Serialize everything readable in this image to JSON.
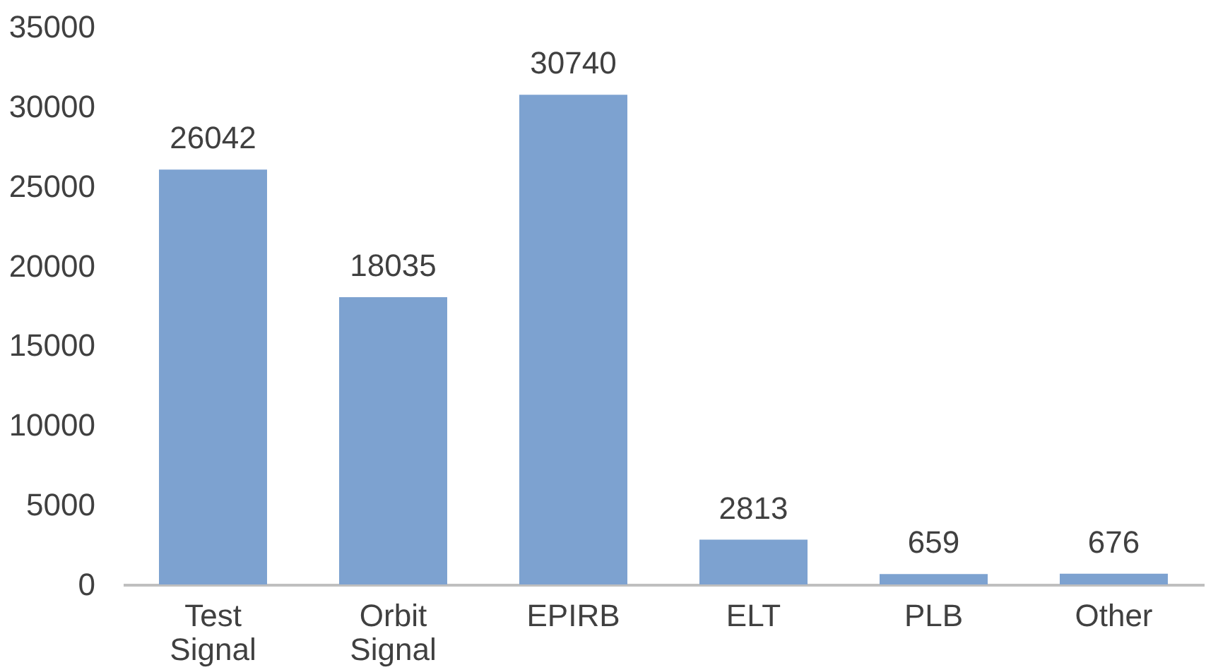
{
  "chart_data": {
    "type": "bar",
    "categories": [
      "Test Signal",
      "Orbit Signal",
      "EPIRB",
      "ELT",
      "PLB",
      "Other"
    ],
    "values": [
      26042,
      18035,
      30740,
      2813,
      659,
      676
    ],
    "color": "#7da2d0",
    "ylim": [
      0,
      35000
    ],
    "yticks": [
      0,
      5000,
      10000,
      15000,
      20000,
      25000,
      30000,
      35000
    ],
    "grid": false,
    "data_labels": true
  }
}
